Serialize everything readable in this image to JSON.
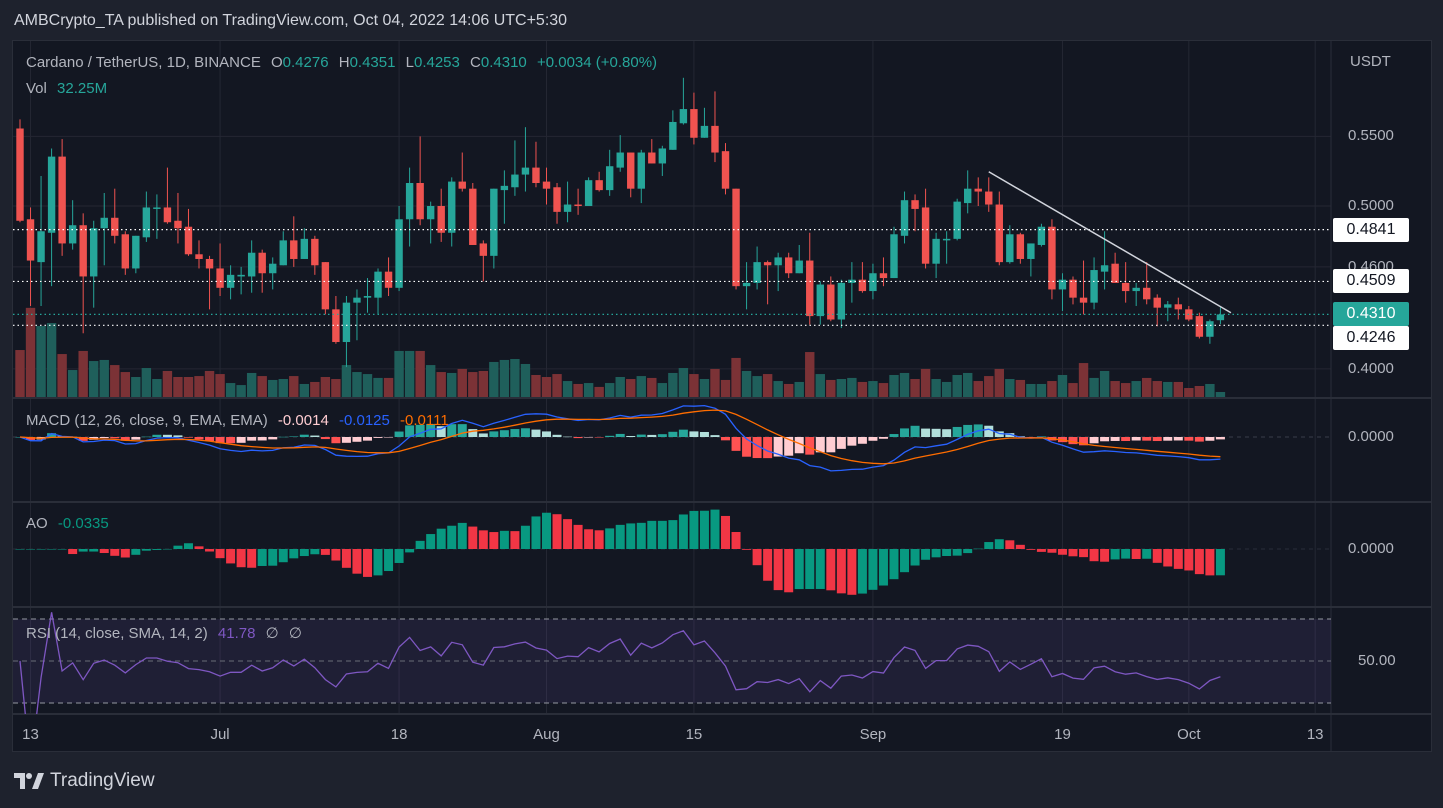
{
  "header": {
    "published": "AMBCrypto_TA published on TradingView.com, Oct 04, 2022 14:06 UTC+5:30"
  },
  "legend": {
    "symbol": "Cardano / TetherUS, 1D, BINANCE",
    "o_label": "O",
    "o": "0.4276",
    "h_label": "H",
    "h": "0.4351",
    "l_label": "L",
    "l": "0.4253",
    "c_label": "C",
    "c": "0.4310",
    "change": "+0.0034 (+0.80%)",
    "vol_label": "Vol",
    "vol": "32.25M"
  },
  "indicators": {
    "macd": {
      "title": "MACD (12, 26, close, 9, EMA, EMA)",
      "hist": "-0.0014",
      "macd": "-0.0125",
      "signal": "-0.0111",
      "zero_label": "0.0000"
    },
    "ao": {
      "title": "AO",
      "value": "-0.0335",
      "zero_label": "0.0000"
    },
    "rsi": {
      "title": "RSI (14, close, SMA, 14, 2)",
      "value": "41.78",
      "extra1": "∅",
      "extra2": "∅",
      "mid_label": "50.00"
    }
  },
  "colors": {
    "up": "#26a69a",
    "down": "#ef5350",
    "vol_up": "#1f5f5b",
    "vol_down": "#7b3236",
    "macd_line": "#2962ff",
    "signal_line": "#ff6d00",
    "hist_up_strong": "#26a69a",
    "hist_up_weak": "#b2dfdb",
    "hist_down_strong": "#ff5252",
    "hist_down_weak": "#ffcdd2",
    "ao_up": "#089981",
    "ao_down": "#f23645",
    "rsi_line": "#7e57c2",
    "last_price": "#26a69a"
  },
  "chart_data": {
    "type": "candlestick",
    "symbol": "Cardano / TetherUS",
    "interval": "1D",
    "exchange": "BINANCE",
    "price_unit": "USDT",
    "price_scale": "log",
    "price_ticks": [
      "0.5500",
      "0.5000",
      "0.4600",
      "0.4000"
    ],
    "time_ticks": [
      {
        "label": "13",
        "date": "2022-06-13"
      },
      {
        "label": "Jul",
        "date": "2022-07-01"
      },
      {
        "label": "18",
        "date": "2022-07-18"
      },
      {
        "label": "Aug",
        "date": "2022-08-01"
      },
      {
        "label": "15",
        "date": "2022-08-15"
      },
      {
        "label": "Sep",
        "date": "2022-09-01"
      },
      {
        "label": "19",
        "date": "2022-09-19"
      },
      {
        "label": "Oct",
        "date": "2022-10-01"
      },
      {
        "label": "13",
        "date": "2022-10-13"
      }
    ],
    "price_lines": [
      {
        "price": "0.4841",
        "style": "dotted",
        "color": "#ffffff"
      },
      {
        "price": "0.4509",
        "style": "dotted",
        "color": "#ffffff"
      },
      {
        "price": "0.4310",
        "style": "dotted",
        "color": "#26a69a",
        "last": true
      },
      {
        "price": "0.4246",
        "style": "dotted",
        "color": "#ffffff"
      }
    ],
    "trendline": {
      "from": [
        "2022-09-12",
        0.524
      ],
      "to": [
        "2022-10-05",
        0.432
      ]
    },
    "volume_unit": "M",
    "columns": [
      "date",
      "open",
      "high",
      "low",
      "close",
      "volume"
    ],
    "candles": [
      [
        "2022-06-12",
        0.556,
        0.563,
        0.489,
        0.49,
        303
      ],
      [
        "2022-06-13",
        0.491,
        0.499,
        0.436,
        0.464,
        575
      ],
      [
        "2022-06-14",
        0.463,
        0.521,
        0.436,
        0.483,
        458
      ],
      [
        "2022-06-15",
        0.482,
        0.541,
        0.448,
        0.535,
        477
      ],
      [
        "2022-06-16",
        0.535,
        0.548,
        0.467,
        0.475,
        277
      ],
      [
        "2022-06-17",
        0.475,
        0.504,
        0.471,
        0.487,
        174
      ],
      [
        "2022-06-18",
        0.487,
        0.495,
        0.42,
        0.454,
        297
      ],
      [
        "2022-06-19",
        0.454,
        0.49,
        0.435,
        0.485,
        232
      ],
      [
        "2022-06-20",
        0.485,
        0.509,
        0.461,
        0.492,
        239
      ],
      [
        "2022-06-21",
        0.492,
        0.512,
        0.475,
        0.48,
        206
      ],
      [
        "2022-06-22",
        0.481,
        0.483,
        0.455,
        0.459,
        161
      ],
      [
        "2022-06-23",
        0.459,
        0.48,
        0.456,
        0.48,
        129
      ],
      [
        "2022-06-24",
        0.479,
        0.51,
        0.476,
        0.499,
        187
      ],
      [
        "2022-06-25",
        0.498,
        0.508,
        0.478,
        0.499,
        116
      ],
      [
        "2022-06-26",
        0.499,
        0.527,
        0.488,
        0.489,
        168
      ],
      [
        "2022-06-27",
        0.49,
        0.509,
        0.475,
        0.485,
        129
      ],
      [
        "2022-06-28",
        0.486,
        0.498,
        0.467,
        0.468,
        129
      ],
      [
        "2022-06-29",
        0.468,
        0.477,
        0.459,
        0.465,
        135
      ],
      [
        "2022-06-30",
        0.465,
        0.467,
        0.434,
        0.459,
        168
      ],
      [
        "2022-07-01",
        0.459,
        0.475,
        0.442,
        0.447,
        148
      ],
      [
        "2022-07-02",
        0.447,
        0.461,
        0.44,
        0.455,
        90
      ],
      [
        "2022-07-03",
        0.454,
        0.46,
        0.443,
        0.455,
        77
      ],
      [
        "2022-07-04",
        0.454,
        0.477,
        0.444,
        0.469,
        155
      ],
      [
        "2022-07-05",
        0.469,
        0.471,
        0.444,
        0.456,
        135
      ],
      [
        "2022-07-06",
        0.456,
        0.466,
        0.446,
        0.462,
        110
      ],
      [
        "2022-07-07",
        0.461,
        0.483,
        0.461,
        0.477,
        116
      ],
      [
        "2022-07-08",
        0.477,
        0.493,
        0.46,
        0.465,
        135
      ],
      [
        "2022-07-09",
        0.465,
        0.485,
        0.465,
        0.478,
        84
      ],
      [
        "2022-07-10",
        0.478,
        0.48,
        0.455,
        0.461,
        97
      ],
      [
        "2022-07-11",
        0.463,
        0.463,
        0.431,
        0.434,
        129
      ],
      [
        "2022-07-12",
        0.434,
        0.442,
        0.414,
        0.415,
        116
      ],
      [
        "2022-07-13",
        0.415,
        0.442,
        0.401,
        0.438,
        206
      ],
      [
        "2022-07-14",
        0.438,
        0.446,
        0.416,
        0.441,
        161
      ],
      [
        "2022-07-15",
        0.441,
        0.453,
        0.432,
        0.442,
        148
      ],
      [
        "2022-07-16",
        0.441,
        0.459,
        0.431,
        0.457,
        123
      ],
      [
        "2022-07-17",
        0.457,
        0.466,
        0.442,
        0.447,
        123
      ],
      [
        "2022-07-18",
        0.447,
        0.5,
        0.445,
        0.491,
        297
      ],
      [
        "2022-07-19",
        0.491,
        0.527,
        0.473,
        0.516,
        297
      ],
      [
        "2022-07-20",
        0.516,
        0.55,
        0.487,
        0.491,
        297
      ],
      [
        "2022-07-21",
        0.491,
        0.503,
        0.475,
        0.5,
        206
      ],
      [
        "2022-07-22",
        0.5,
        0.512,
        0.476,
        0.482,
        161
      ],
      [
        "2022-07-23",
        0.482,
        0.52,
        0.473,
        0.517,
        155
      ],
      [
        "2022-07-24",
        0.517,
        0.538,
        0.51,
        0.512,
        181
      ],
      [
        "2022-07-25",
        0.512,
        0.516,
        0.474,
        0.474,
        161
      ],
      [
        "2022-07-26",
        0.475,
        0.477,
        0.451,
        0.467,
        168
      ],
      [
        "2022-07-27",
        0.467,
        0.512,
        0.459,
        0.512,
        226
      ],
      [
        "2022-07-28",
        0.511,
        0.525,
        0.488,
        0.514,
        239
      ],
      [
        "2022-07-29",
        0.513,
        0.547,
        0.507,
        0.522,
        245
      ],
      [
        "2022-07-30",
        0.522,
        0.557,
        0.51,
        0.527,
        213
      ],
      [
        "2022-07-31",
        0.527,
        0.546,
        0.513,
        0.516,
        142
      ],
      [
        "2022-08-01",
        0.517,
        0.527,
        0.501,
        0.512,
        129
      ],
      [
        "2022-08-02",
        0.513,
        0.516,
        0.488,
        0.496,
        148
      ],
      [
        "2022-08-03",
        0.496,
        0.517,
        0.489,
        0.501,
        103
      ],
      [
        "2022-08-04",
        0.501,
        0.512,
        0.494,
        0.5,
        84
      ],
      [
        "2022-08-05",
        0.5,
        0.52,
        0.5,
        0.518,
        90
      ],
      [
        "2022-08-06",
        0.518,
        0.524,
        0.51,
        0.511,
        65
      ],
      [
        "2022-08-07",
        0.511,
        0.54,
        0.507,
        0.528,
        90
      ],
      [
        "2022-08-08",
        0.527,
        0.551,
        0.524,
        0.538,
        129
      ],
      [
        "2022-08-09",
        0.538,
        0.538,
        0.506,
        0.512,
        116
      ],
      [
        "2022-08-10",
        0.512,
        0.54,
        0.502,
        0.538,
        135
      ],
      [
        "2022-08-11",
        0.538,
        0.548,
        0.53,
        0.53,
        123
      ],
      [
        "2022-08-12",
        0.53,
        0.543,
        0.521,
        0.541,
        90
      ],
      [
        "2022-08-13",
        0.54,
        0.57,
        0.54,
        0.561,
        155
      ],
      [
        "2022-08-14",
        0.56,
        0.596,
        0.559,
        0.571,
        187
      ],
      [
        "2022-08-15",
        0.571,
        0.584,
        0.544,
        0.549,
        148
      ],
      [
        "2022-08-16",
        0.549,
        0.572,
        0.549,
        0.558,
        116
      ],
      [
        "2022-08-17",
        0.558,
        0.585,
        0.531,
        0.538,
        181
      ],
      [
        "2022-08-18",
        0.539,
        0.545,
        0.508,
        0.512,
        110
      ],
      [
        "2022-08-19",
        0.512,
        0.512,
        0.446,
        0.448,
        252
      ],
      [
        "2022-08-20",
        0.448,
        0.463,
        0.434,
        0.45,
        168
      ],
      [
        "2022-08-21",
        0.45,
        0.473,
        0.446,
        0.463,
        135
      ],
      [
        "2022-08-22",
        0.463,
        0.464,
        0.437,
        0.461,
        148
      ],
      [
        "2022-08-23",
        0.461,
        0.469,
        0.445,
        0.466,
        103
      ],
      [
        "2022-08-24",
        0.466,
        0.469,
        0.453,
        0.456,
        84
      ],
      [
        "2022-08-25",
        0.456,
        0.474,
        0.456,
        0.464,
        97
      ],
      [
        "2022-08-26",
        0.464,
        0.482,
        0.425,
        0.43,
        290
      ],
      [
        "2022-08-27",
        0.43,
        0.451,
        0.425,
        0.449,
        148
      ],
      [
        "2022-08-28",
        0.449,
        0.454,
        0.427,
        0.428,
        110
      ],
      [
        "2022-08-29",
        0.428,
        0.452,
        0.423,
        0.45,
        116
      ],
      [
        "2022-08-30",
        0.45,
        0.463,
        0.438,
        0.452,
        123
      ],
      [
        "2022-08-31",
        0.452,
        0.463,
        0.444,
        0.445,
        97
      ],
      [
        "2022-09-01",
        0.445,
        0.462,
        0.44,
        0.456,
        103
      ],
      [
        "2022-09-02",
        0.456,
        0.466,
        0.448,
        0.453,
        90
      ],
      [
        "2022-09-03",
        0.453,
        0.486,
        0.453,
        0.481,
        142
      ],
      [
        "2022-09-04",
        0.48,
        0.51,
        0.475,
        0.504,
        155
      ],
      [
        "2022-09-05",
        0.504,
        0.508,
        0.483,
        0.498,
        116
      ],
      [
        "2022-09-06",
        0.499,
        0.512,
        0.459,
        0.462,
        181
      ],
      [
        "2022-09-07",
        0.462,
        0.482,
        0.453,
        0.478,
        116
      ],
      [
        "2022-09-08",
        0.477,
        0.483,
        0.462,
        0.478,
        97
      ],
      [
        "2022-09-09",
        0.478,
        0.505,
        0.477,
        0.503,
        142
      ],
      [
        "2022-09-10",
        0.502,
        0.525,
        0.495,
        0.512,
        155
      ],
      [
        "2022-09-11",
        0.512,
        0.52,
        0.5,
        0.51,
        103
      ],
      [
        "2022-09-12",
        0.51,
        0.52,
        0.496,
        0.501,
        135
      ],
      [
        "2022-09-13",
        0.501,
        0.51,
        0.461,
        0.463,
        181
      ],
      [
        "2022-09-14",
        0.463,
        0.487,
        0.462,
        0.481,
        116
      ],
      [
        "2022-09-15",
        0.481,
        0.482,
        0.462,
        0.465,
        110
      ],
      [
        "2022-09-16",
        0.465,
        0.475,
        0.454,
        0.475,
        84
      ],
      [
        "2022-09-17",
        0.474,
        0.488,
        0.473,
        0.486,
        84
      ],
      [
        "2022-09-18",
        0.486,
        0.491,
        0.44,
        0.446,
        103
      ],
      [
        "2022-09-19",
        0.446,
        0.456,
        0.433,
        0.452,
        142
      ],
      [
        "2022-09-20",
        0.452,
        0.454,
        0.437,
        0.441,
        90
      ],
      [
        "2022-09-21",
        0.441,
        0.464,
        0.431,
        0.438,
        219
      ],
      [
        "2022-09-22",
        0.438,
        0.466,
        0.434,
        0.458,
        123
      ],
      [
        "2022-09-23",
        0.457,
        0.483,
        0.446,
        0.461,
        168
      ],
      [
        "2022-09-24",
        0.462,
        0.469,
        0.45,
        0.45,
        103
      ],
      [
        "2022-09-25",
        0.45,
        0.463,
        0.438,
        0.445,
        90
      ],
      [
        "2022-09-26",
        0.445,
        0.45,
        0.436,
        0.447,
        103
      ],
      [
        "2022-09-27",
        0.447,
        0.463,
        0.437,
        0.44,
        123
      ],
      [
        "2022-09-28",
        0.441,
        0.443,
        0.424,
        0.435,
        103
      ],
      [
        "2022-09-29",
        0.435,
        0.439,
        0.427,
        0.437,
        97
      ],
      [
        "2022-09-30",
        0.437,
        0.441,
        0.428,
        0.434,
        97
      ],
      [
        "2022-10-01",
        0.434,
        0.436,
        0.427,
        0.428,
        58
      ],
      [
        "2022-10-02",
        0.43,
        0.432,
        0.417,
        0.418,
        71
      ],
      [
        "2022-10-03",
        0.418,
        0.428,
        0.414,
        0.427,
        84
      ],
      [
        "2022-10-04",
        0.4276,
        0.4351,
        0.4253,
        0.431,
        32.25
      ]
    ]
  },
  "footer": {
    "brand": "TradingView"
  }
}
